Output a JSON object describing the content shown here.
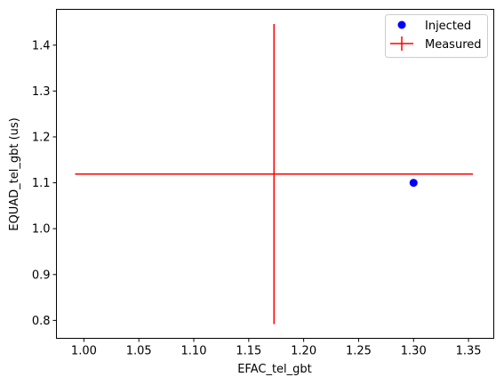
{
  "chart_data": {
    "type": "scatter",
    "xlabel": "EFAC_tel_gbt",
    "ylabel": "EQUAD_tel_gbt (us)",
    "xlim": [
      0.975,
      1.373
    ],
    "ylim": [
      0.761,
      1.478
    ],
    "xticks": [
      1.0,
      1.05,
      1.1,
      1.15,
      1.2,
      1.25,
      1.3,
      1.35
    ],
    "xtick_labels": [
      "1.00",
      "1.05",
      "1.10",
      "1.15",
      "1.20",
      "1.25",
      "1.30",
      "1.35"
    ],
    "yticks": [
      0.8,
      0.9,
      1.0,
      1.1,
      1.2,
      1.3,
      1.4
    ],
    "ytick_labels": [
      "0.8",
      "0.9",
      "1.0",
      "1.1",
      "1.2",
      "1.3",
      "1.4"
    ],
    "legend": {
      "position": "top-right"
    },
    "series": [
      {
        "name": "Injected",
        "kind": "scatter",
        "color": "#0000ff",
        "points": [
          {
            "x": 1.3,
            "y": 1.1
          }
        ]
      },
      {
        "name": "Measured",
        "kind": "errorbar",
        "color": "#ff0000",
        "points": [
          {
            "x": 1.173,
            "y": 1.119,
            "xerr": [
              0.181,
              0.181
            ],
            "yerr": [
              0.327,
              0.327
            ]
          }
        ]
      }
    ]
  }
}
